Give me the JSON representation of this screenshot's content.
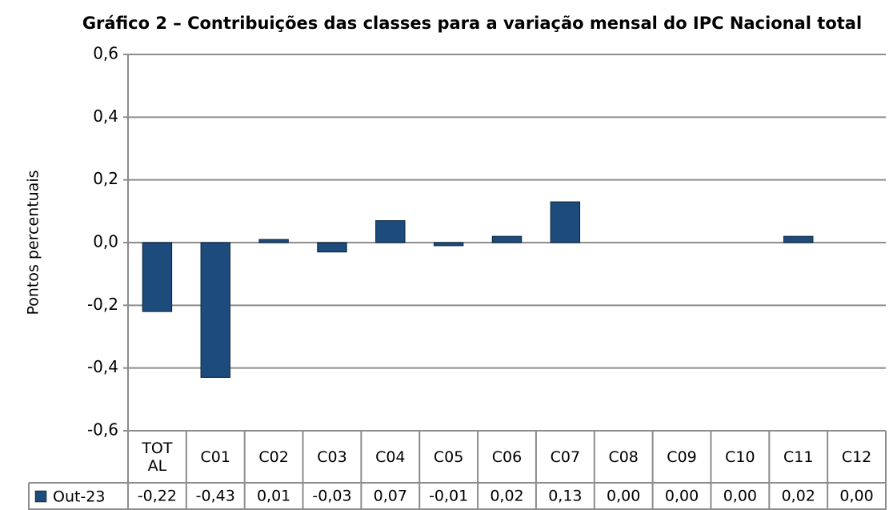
{
  "chart_data": {
    "type": "bar",
    "title": "Gráfico 2 – Contribuições das classes para a variação mensal do IPC Nacional total",
    "y_label": "Pontos percentuais",
    "categories": [
      "TOTAL",
      "C01",
      "C02",
      "C03",
      "C04",
      "C05",
      "C06",
      "C07",
      "C08",
      "C09",
      "C10",
      "C11",
      "C12"
    ],
    "series": [
      {
        "name": "Out-23",
        "color": "#1d4b7c",
        "values": [
          -0.22,
          -0.43,
          0.01,
          -0.03,
          0.07,
          -0.01,
          0.02,
          0.13,
          0,
          0,
          0,
          0.02,
          0
        ],
        "value_labels": [
          "-0,22",
          "-0,43",
          "0,01",
          "-0,03",
          "0,07",
          "-0,01",
          "0,02",
          "0,13",
          "0,00",
          "0,00",
          "0,00",
          "0,02",
          "0,00"
        ]
      }
    ],
    "ylim": [
      -0.6,
      0.6
    ],
    "yticks": [
      {
        "value": -0.6,
        "label": "-0,6"
      },
      {
        "value": -0.4,
        "label": "-0,4"
      },
      {
        "value": -0.2,
        "label": "-0,2"
      },
      {
        "value": 0,
        "label": "0,0"
      },
      {
        "value": 0.2,
        "label": "0,2"
      },
      {
        "value": 0.4,
        "label": "0,4"
      },
      {
        "value": 0.6,
        "label": "0,6"
      }
    ],
    "grid": true
  }
}
